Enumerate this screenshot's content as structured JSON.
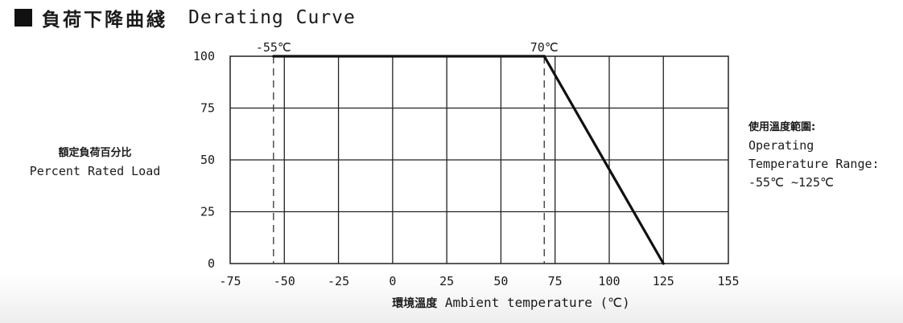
{
  "header": {
    "title_zh": "負荷下降曲綫",
    "title_en": "Derating Curve"
  },
  "operating_range": {
    "label_zh": "使用溫度範圍:",
    "label_en_line1": "Operating",
    "label_en_line2": "Temperature Range:",
    "value": "-55℃ ~125℃"
  },
  "chart_data": {
    "type": "line",
    "title": "Derating Curve",
    "xlabel_zh": "環境溫度",
    "xlabel": "Ambient temperature (℃)",
    "ylabel_zh": "額定負荷百分比",
    "ylabel": "Percent Rated Load",
    "xlim": [
      -75,
      155
    ],
    "ylim": [
      0,
      100
    ],
    "x_ticks": [
      -75,
      -50,
      -25,
      0,
      25,
      50,
      75,
      100,
      125,
      155
    ],
    "y_ticks": [
      0,
      25,
      50,
      75,
      100
    ],
    "grid": true,
    "series": [
      {
        "x": [
          -55,
          70,
          125
        ],
        "y": [
          100,
          100,
          0
        ]
      }
    ],
    "reference_lines": [
      {
        "x": -55,
        "label": "-55℃",
        "style": "dashed"
      },
      {
        "x": 70,
        "label": "70℃",
        "style": "dashed"
      }
    ],
    "line_color": "#111111",
    "grid_color": "#222222"
  }
}
